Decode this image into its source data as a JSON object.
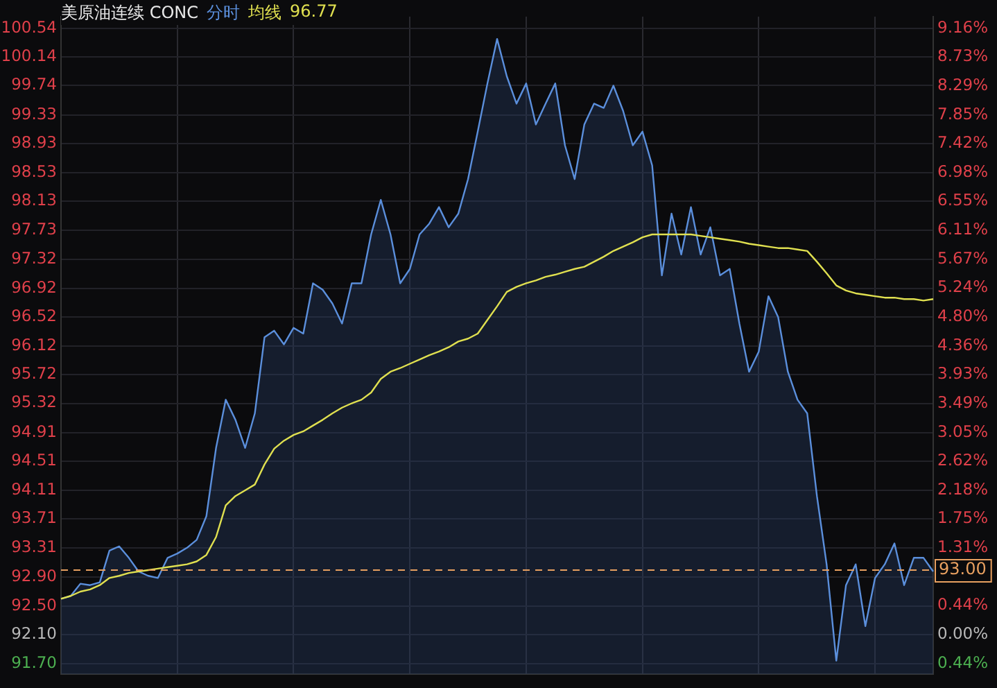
{
  "chart_data": {
    "type": "area",
    "title": "美原油连续 CONC",
    "annotations": [
      "96.77"
    ],
    "categories": [
      null,
      null,
      null,
      null,
      null,
      null,
      null,
      null,
      null,
      null,
      null,
      null,
      null,
      null,
      null,
      null,
      null,
      null,
      null,
      null,
      null,
      null,
      null,
      null,
      null,
      null,
      null,
      null,
      null,
      null,
      null,
      null,
      null,
      null,
      null,
      null,
      null,
      null,
      null,
      null,
      null,
      null,
      null,
      null,
      null,
      null,
      null,
      null,
      null,
      null,
      null,
      null,
      null,
      null,
      null,
      null,
      null,
      null,
      null,
      null,
      null,
      null,
      null,
      null,
      null,
      null,
      null,
      null,
      null,
      null,
      null,
      null,
      null,
      null,
      null,
      null,
      null,
      null,
      null,
      null,
      null,
      null,
      null,
      null,
      null,
      null,
      null,
      null,
      null,
      null,
      null
    ],
    "series": [
      {
        "name": "分时",
        "color": "#5b8fdc",
        "values": [
          92.6,
          92.64,
          92.81,
          92.79,
          92.83,
          93.27,
          93.33,
          93.17,
          92.98,
          92.92,
          92.89,
          93.17,
          93.23,
          93.31,
          93.42,
          93.75,
          94.7,
          95.37,
          95.09,
          94.7,
          95.18,
          96.24,
          96.33,
          96.14,
          96.37,
          96.29,
          96.99,
          96.9,
          96.71,
          96.43,
          96.99,
          96.99,
          97.67,
          98.15,
          97.67,
          96.99,
          97.19,
          97.67,
          97.82,
          98.05,
          97.77,
          97.96,
          98.44,
          99.1,
          99.77,
          100.39,
          99.87,
          99.49,
          99.77,
          99.2,
          99.49,
          99.77,
          98.91,
          98.44,
          99.2,
          99.49,
          99.43,
          99.74,
          99.39,
          98.91,
          99.1,
          98.63,
          97.1,
          97.96,
          97.39,
          98.05,
          97.39,
          97.77,
          97.1,
          97.19,
          96.43,
          95.76,
          96.04,
          96.81,
          96.52,
          95.76,
          95.37,
          95.18,
          94.03,
          93.08,
          91.74,
          92.79,
          93.08,
          92.22,
          92.89,
          93.08,
          93.37,
          92.79,
          93.17,
          93.17,
          92.98
        ]
      },
      {
        "name": "均线",
        "type": "line",
        "color": "#e0e050",
        "values": [
          92.6,
          92.64,
          92.7,
          92.73,
          92.79,
          92.89,
          92.92,
          92.96,
          92.98,
          93.0,
          93.02,
          93.04,
          93.06,
          93.08,
          93.12,
          93.21,
          93.46,
          93.9,
          94.03,
          94.11,
          94.19,
          94.47,
          94.69,
          94.8,
          94.88,
          94.93,
          95.01,
          95.09,
          95.18,
          95.26,
          95.32,
          95.37,
          95.47,
          95.66,
          95.76,
          95.81,
          95.87,
          95.93,
          95.99,
          96.04,
          96.1,
          96.18,
          96.22,
          96.29,
          96.48,
          96.67,
          96.87,
          96.94,
          96.99,
          97.03,
          97.08,
          97.11,
          97.15,
          97.19,
          97.22,
          97.29,
          97.36,
          97.44,
          97.5,
          97.56,
          97.63,
          97.67,
          97.67,
          97.67,
          97.67,
          97.67,
          97.65,
          97.63,
          97.61,
          97.59,
          97.57,
          97.54,
          97.52,
          97.5,
          97.48,
          97.48,
          97.46,
          97.44,
          97.29,
          97.13,
          96.96,
          96.89,
          96.85,
          96.83,
          96.81,
          96.79,
          96.79,
          96.77,
          96.77,
          96.75,
          96.77
        ]
      }
    ],
    "ylim": [
      91.55,
      100.7
    ],
    "yticks": [
      {
        "value": 91.7,
        "label": "91.70"
      },
      {
        "value": 92.1,
        "label": "92.10"
      },
      {
        "value": 92.5,
        "label": "92.50"
      },
      {
        "value": 92.9,
        "label": "92.90"
      },
      93.31,
      93.71,
      94.11,
      94.51,
      94.91,
      95.32,
      95.72,
      96.12,
      96.52,
      96.92,
      97.32,
      97.73,
      98.13,
      98.53,
      98.93,
      99.33,
      99.74,
      100.14,
      100.54
    ],
    "y2lim": [
      -0.6,
      9.34
    ],
    "y2ticks": [
      {
        "value": -0.44,
        "label": "0.44%"
      },
      {
        "value": 0,
        "label": "0.00%"
      },
      {
        "value": 0.44,
        "label": "0.44%"
      },
      {
        "value": 1.31,
        "label": "1.31%"
      },
      {
        "value": 1.75,
        "label": "1.75%"
      },
      {
        "value": 2.18,
        "label": "2.18%"
      },
      {
        "value": 2.62,
        "label": "2.62%"
      },
      {
        "value": 3.05,
        "label": "3.05%"
      },
      {
        "value": 3.49,
        "label": "3.49%"
      },
      {
        "value": 3.93,
        "label": "3.93%"
      },
      {
        "value": 4.36,
        "label": "4.36%"
      },
      {
        "value": 4.8,
        "label": "4.80%"
      },
      {
        "value": 5.24,
        "label": "5.24%"
      },
      {
        "value": 5.67,
        "label": "5.67%"
      },
      {
        "value": 6.11,
        "label": "6.11%"
      },
      {
        "value": 6.55,
        "label": "6.55%"
      },
      {
        "value": 6.98,
        "label": "6.98%"
      },
      {
        "value": 7.42,
        "label": "7.42%"
      },
      {
        "value": 7.85,
        "label": "7.85%"
      },
      {
        "value": 8.29,
        "label": "8.29%"
      },
      {
        "value": 8.73,
        "label": "8.73%"
      },
      {
        "value": 9.16,
        "label": "9.16%"
      }
    ],
    "ref_lines": [
      {
        "axis": "y",
        "value": 93.0,
        "label": "93.00",
        "color": "#e8a060",
        "line_style": "dashed"
      }
    ],
    "grid": true,
    "tick_labels": "y",
    "legend": false,
    "marker": "none",
    "line_style": "solid"
  }
}
